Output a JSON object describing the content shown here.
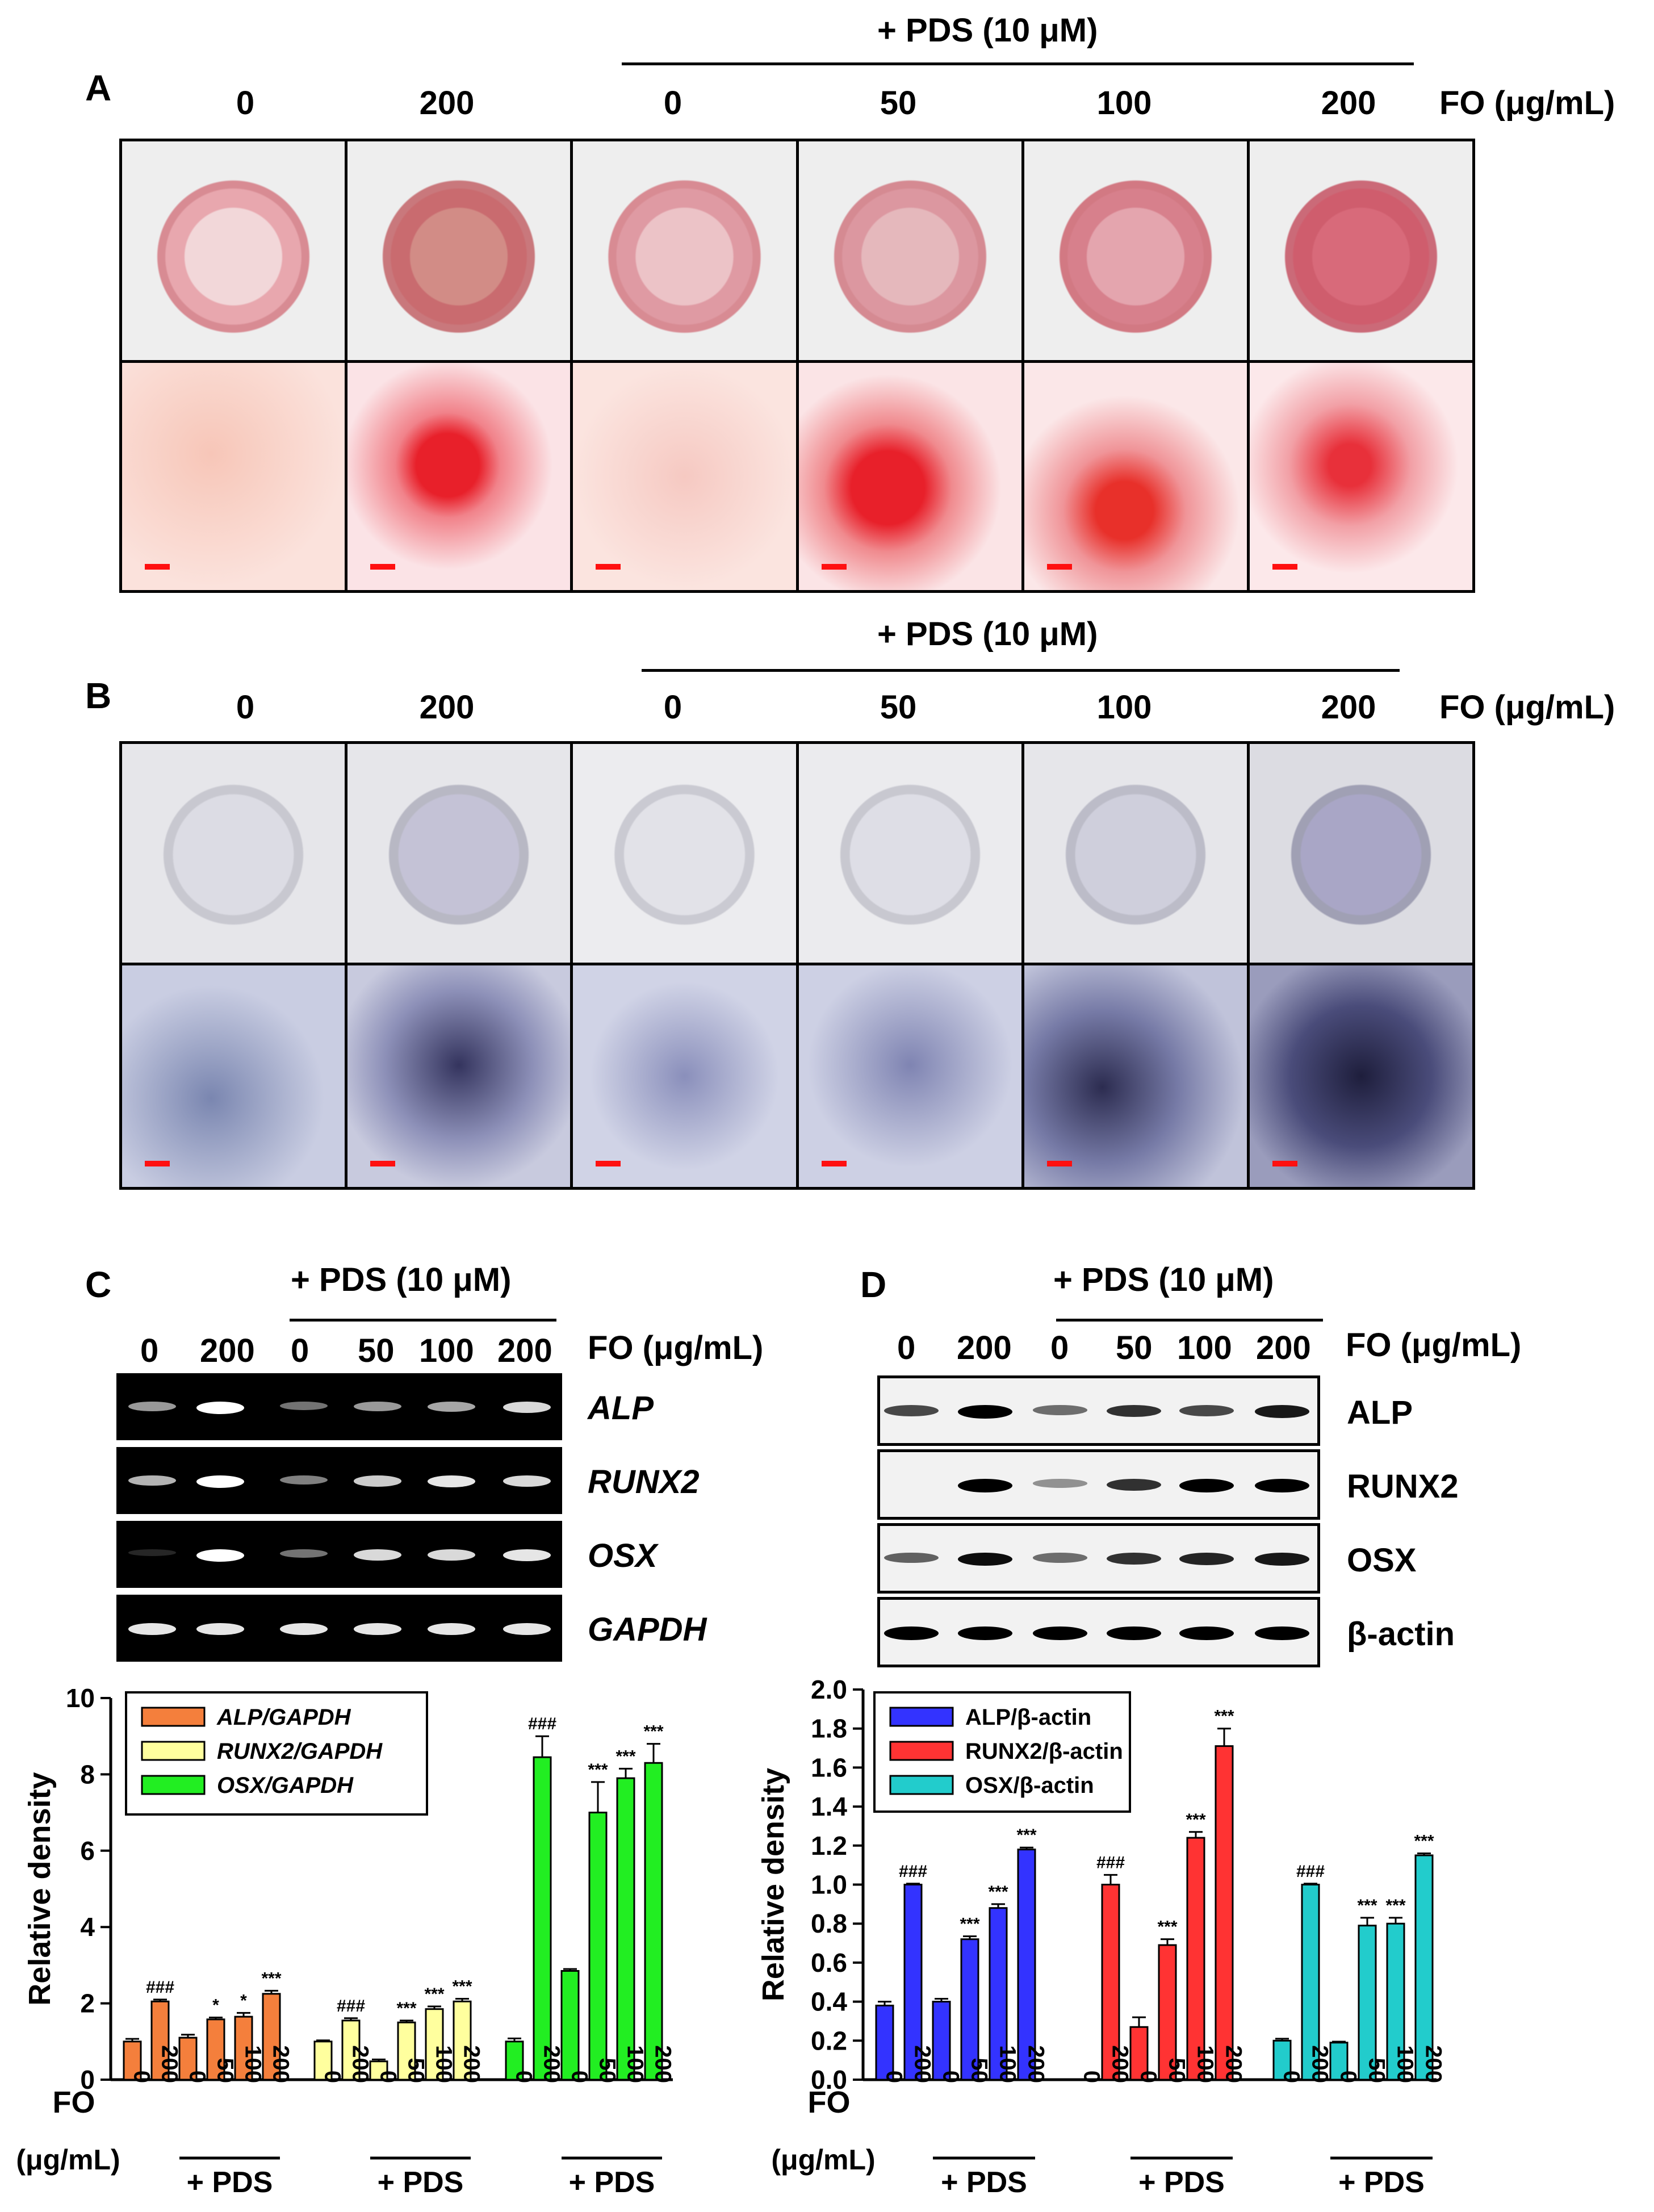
{
  "header": {
    "pds_label": "+ PDS (10 μM)",
    "fo_label": "FO (μg/mL)",
    "doses": [
      "0",
      "200",
      "0",
      "50",
      "100",
      "200"
    ]
  },
  "panel_A": {
    "letter": "A"
  },
  "panel_B": {
    "letter": "B"
  },
  "panel_C": {
    "letter": "C",
    "pds_label": "+ PDS (10 μM)",
    "fo_label": "FO (μg/mL)",
    "doses": [
      "0",
      "200",
      "0",
      "50",
      "100",
      "200"
    ],
    "gel_labels": [
      "ALP",
      "RUNX2",
      "OSX",
      "GAPDH"
    ]
  },
  "panel_D": {
    "letter": "D",
    "pds_label": "+ PDS (10 μM)",
    "fo_label": "FO (μg/mL)",
    "doses": [
      "0",
      "200",
      "0",
      "50",
      "100",
      "200"
    ],
    "blot_labels": [
      "ALP",
      "RUNX2",
      "OSX",
      "β-actin"
    ]
  },
  "colors": {
    "alp_c": "#f47f3c",
    "runx2_c": "#ffff9e",
    "osx_c": "#22ee22",
    "alp_d": "#3333ff",
    "runx2_d": "#ff3333",
    "osx_d": "#22cccc",
    "stain_a": "#d9363e",
    "stain_b": "#3a3a7a",
    "scale_bar": "#ff1010"
  },
  "chart_data": [
    {
      "type": "bar",
      "panel": "C",
      "ylabel": "Relative density",
      "ylim": [
        0,
        10
      ],
      "yticks": [
        "0",
        "2",
        "4",
        "6",
        "8",
        "10"
      ],
      "x_axis_label": [
        "FO",
        "(μg/mL)"
      ],
      "group_label": "+ PDS",
      "categories": [
        "0",
        "200",
        "0",
        "50",
        "100",
        "200"
      ],
      "series": [
        {
          "name": "ALP/GAPDH",
          "values": [
            1.0,
            2.05,
            1.1,
            1.58,
            1.65,
            2.25
          ],
          "errors": [
            0.07,
            0.05,
            0.08,
            0.05,
            0.1,
            0.08
          ],
          "marks": [
            "",
            "###",
            "",
            "*",
            "*",
            "***"
          ]
        },
        {
          "name": "RUNX2/GAPDH",
          "values": [
            1.0,
            1.55,
            0.48,
            1.5,
            1.85,
            2.05
          ],
          "errors": [
            0.03,
            0.06,
            0.05,
            0.05,
            0.07,
            0.07
          ],
          "marks": [
            "",
            "###",
            "",
            "***",
            "***",
            "***"
          ]
        },
        {
          "name": "OSX/GAPDH",
          "values": [
            1.0,
            8.45,
            2.85,
            7.0,
            7.9,
            8.3
          ],
          "errors": [
            0.08,
            0.55,
            0.05,
            0.8,
            0.25,
            0.5
          ],
          "marks": [
            "",
            "###",
            "",
            "***",
            "***",
            "***"
          ]
        }
      ]
    },
    {
      "type": "bar",
      "panel": "D",
      "ylabel": "Relative density",
      "ylim": [
        0,
        2.0
      ],
      "yticks": [
        "0.0",
        "0.2",
        "0.4",
        "0.6",
        "0.8",
        "1.0",
        "1.2",
        "1.4",
        "1.6",
        "1.8",
        "2.0"
      ],
      "x_axis_label": [
        "FO",
        "(μg/mL)"
      ],
      "group_label": "+ PDS",
      "categories": [
        "0",
        "200",
        "0",
        "50",
        "100",
        "200"
      ],
      "series": [
        {
          "name": "ALP/β-actin",
          "values": [
            0.38,
            1.0,
            0.4,
            0.72,
            0.88,
            1.18
          ],
          "errors": [
            0.02,
            0.005,
            0.015,
            0.015,
            0.02,
            0.01
          ],
          "marks": [
            "",
            "###",
            "",
            "***",
            "***",
            "***"
          ]
        },
        {
          "name": "RUNX2/β-actin",
          "values": [
            0.0,
            1.0,
            0.27,
            0.69,
            1.24,
            1.71
          ],
          "errors": [
            0.0,
            0.05,
            0.05,
            0.03,
            0.03,
            0.09
          ],
          "marks": [
            "",
            "###",
            "",
            "***",
            "***",
            "***"
          ]
        },
        {
          "name": "OSX/β-actin",
          "values": [
            0.2,
            1.0,
            0.19,
            0.79,
            0.8,
            1.15
          ],
          "errors": [
            0.01,
            0.005,
            0.005,
            0.04,
            0.03,
            0.01
          ],
          "marks": [
            "",
            "###",
            "",
            "***",
            "***",
            "***"
          ]
        }
      ]
    }
  ]
}
